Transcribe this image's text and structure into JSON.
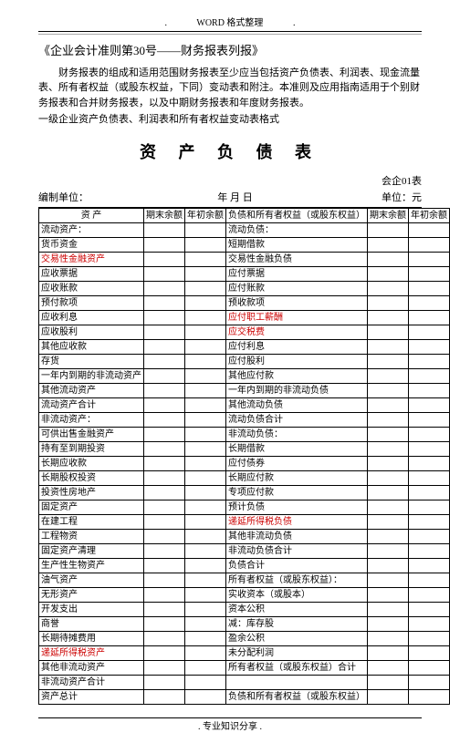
{
  "header": {
    "left": ".",
    "center": "WORD 格式整理",
    "right": "."
  },
  "doc_title": "《企业会计准则第30号——财务报表列报》",
  "paragraph": "财务报表的组成和适用范围财务报表至少应当包括资产负债表、利润表、现金流量表、所有者权益（或股东权益，下同）变动表和附注。本准则及应用指南适用于个别财务报表和合并财务报表，以及中期财务报表和年度财务报表。",
  "subhead": "一级企业资产负债表、利润表和所有者权益变动表格式",
  "sheet_title": "资 产 负 债 表",
  "table_code": "会企01表",
  "unit_row": {
    "left": "编制单位：",
    "mid": "年    月    日",
    "right": "单位：元"
  },
  "columns": {
    "c1": "资      产",
    "c2": "期末余额",
    "c3": "年初余额",
    "c4": "负债和所有者权益（或股东权益）",
    "c5": "期末余额",
    "c6": "年初余额"
  },
  "rows": [
    {
      "l": "流动资产：",
      "lr": false,
      "r": "流动负债：",
      "rr": false
    },
    {
      "l": "货币资金",
      "lr": false,
      "r": "短期借款",
      "rr": false
    },
    {
      "l": "交易性金融资产",
      "lr": true,
      "r": "交易性金融负债",
      "rr": false
    },
    {
      "l": "应收票据",
      "lr": false,
      "r": "应付票据",
      "rr": false
    },
    {
      "l": "应收账款",
      "lr": false,
      "r": "应付账款",
      "rr": false
    },
    {
      "l": "预付款项",
      "lr": false,
      "r": "预收款项",
      "rr": false
    },
    {
      "l": "应收利息",
      "lr": false,
      "r": "应付职工薪酬",
      "rr": true
    },
    {
      "l": "应收股利",
      "lr": false,
      "r": "应交税费",
      "rr": true
    },
    {
      "l": "其他应收款",
      "lr": false,
      "r": "应付利息",
      "rr": false
    },
    {
      "l": "存货",
      "lr": false,
      "r": "应付股利",
      "rr": false
    },
    {
      "l": "一年内到期的非流动资产",
      "lr": false,
      "r": "其他应付款",
      "rr": false
    },
    {
      "l": "其他流动资产",
      "lr": false,
      "r": "一年内到期的非流动负债",
      "rr": false
    },
    {
      "l": "流动资产合计",
      "lr": false,
      "r": "其他流动负债",
      "rr": false
    },
    {
      "l": "非流动资产：",
      "lr": false,
      "r": "流动负债合计",
      "rr": false
    },
    {
      "l": "可供出售金融资产",
      "lr": false,
      "r": "非流动负债：",
      "rr": false
    },
    {
      "l": "持有至到期投资",
      "lr": false,
      "r": "长期借款",
      "rr": false
    },
    {
      "l": "长期应收款",
      "lr": false,
      "r": "应付债券",
      "rr": false
    },
    {
      "l": "长期股权投资",
      "lr": false,
      "r": "长期应付款",
      "rr": false
    },
    {
      "l": "投资性房地产",
      "lr": false,
      "r": "专项应付款",
      "rr": false
    },
    {
      "l": "固定资产",
      "lr": false,
      "r": "预计负债",
      "rr": false
    },
    {
      "l": "在建工程",
      "lr": false,
      "r": "递延所得税负债",
      "rr": true
    },
    {
      "l": "工程物资",
      "lr": false,
      "r": "其他非流动负债",
      "rr": false
    },
    {
      "l": "固定资产清理",
      "lr": false,
      "r": "非流动负债合计",
      "rr": false
    },
    {
      "l": "生产性生物资产",
      "lr": false,
      "r": "负债合计",
      "rr": false
    },
    {
      "l": "油气资产",
      "lr": false,
      "r": "所有者权益（或股东权益）：",
      "rr": false
    },
    {
      "l": "无形资产",
      "lr": false,
      "r": "实收资本（或股本）",
      "rr": false
    },
    {
      "l": "开发支出",
      "lr": false,
      "r": "资本公积",
      "rr": false
    },
    {
      "l": "商誉",
      "lr": false,
      "r": "减：库存股",
      "rr": false
    },
    {
      "l": "长期待摊费用",
      "lr": false,
      "r": "盈余公积",
      "rr": false
    },
    {
      "l": "递延所得税资产",
      "lr": true,
      "r": "未分配利润",
      "rr": false
    },
    {
      "l": "其他非流动资产",
      "lr": false,
      "r": "所有者权益（或股东权益）合计",
      "rr": false
    },
    {
      "l": "非流动资产合计",
      "lr": false,
      "r": "",
      "rr": false
    },
    {
      "l": "资产总计",
      "lr": false,
      "r": "负债和所有者权益（或股东权益）",
      "rr": false
    }
  ],
  "footer": {
    "left": ".",
    "center": ". 专业知识分享 .",
    "right": ""
  }
}
